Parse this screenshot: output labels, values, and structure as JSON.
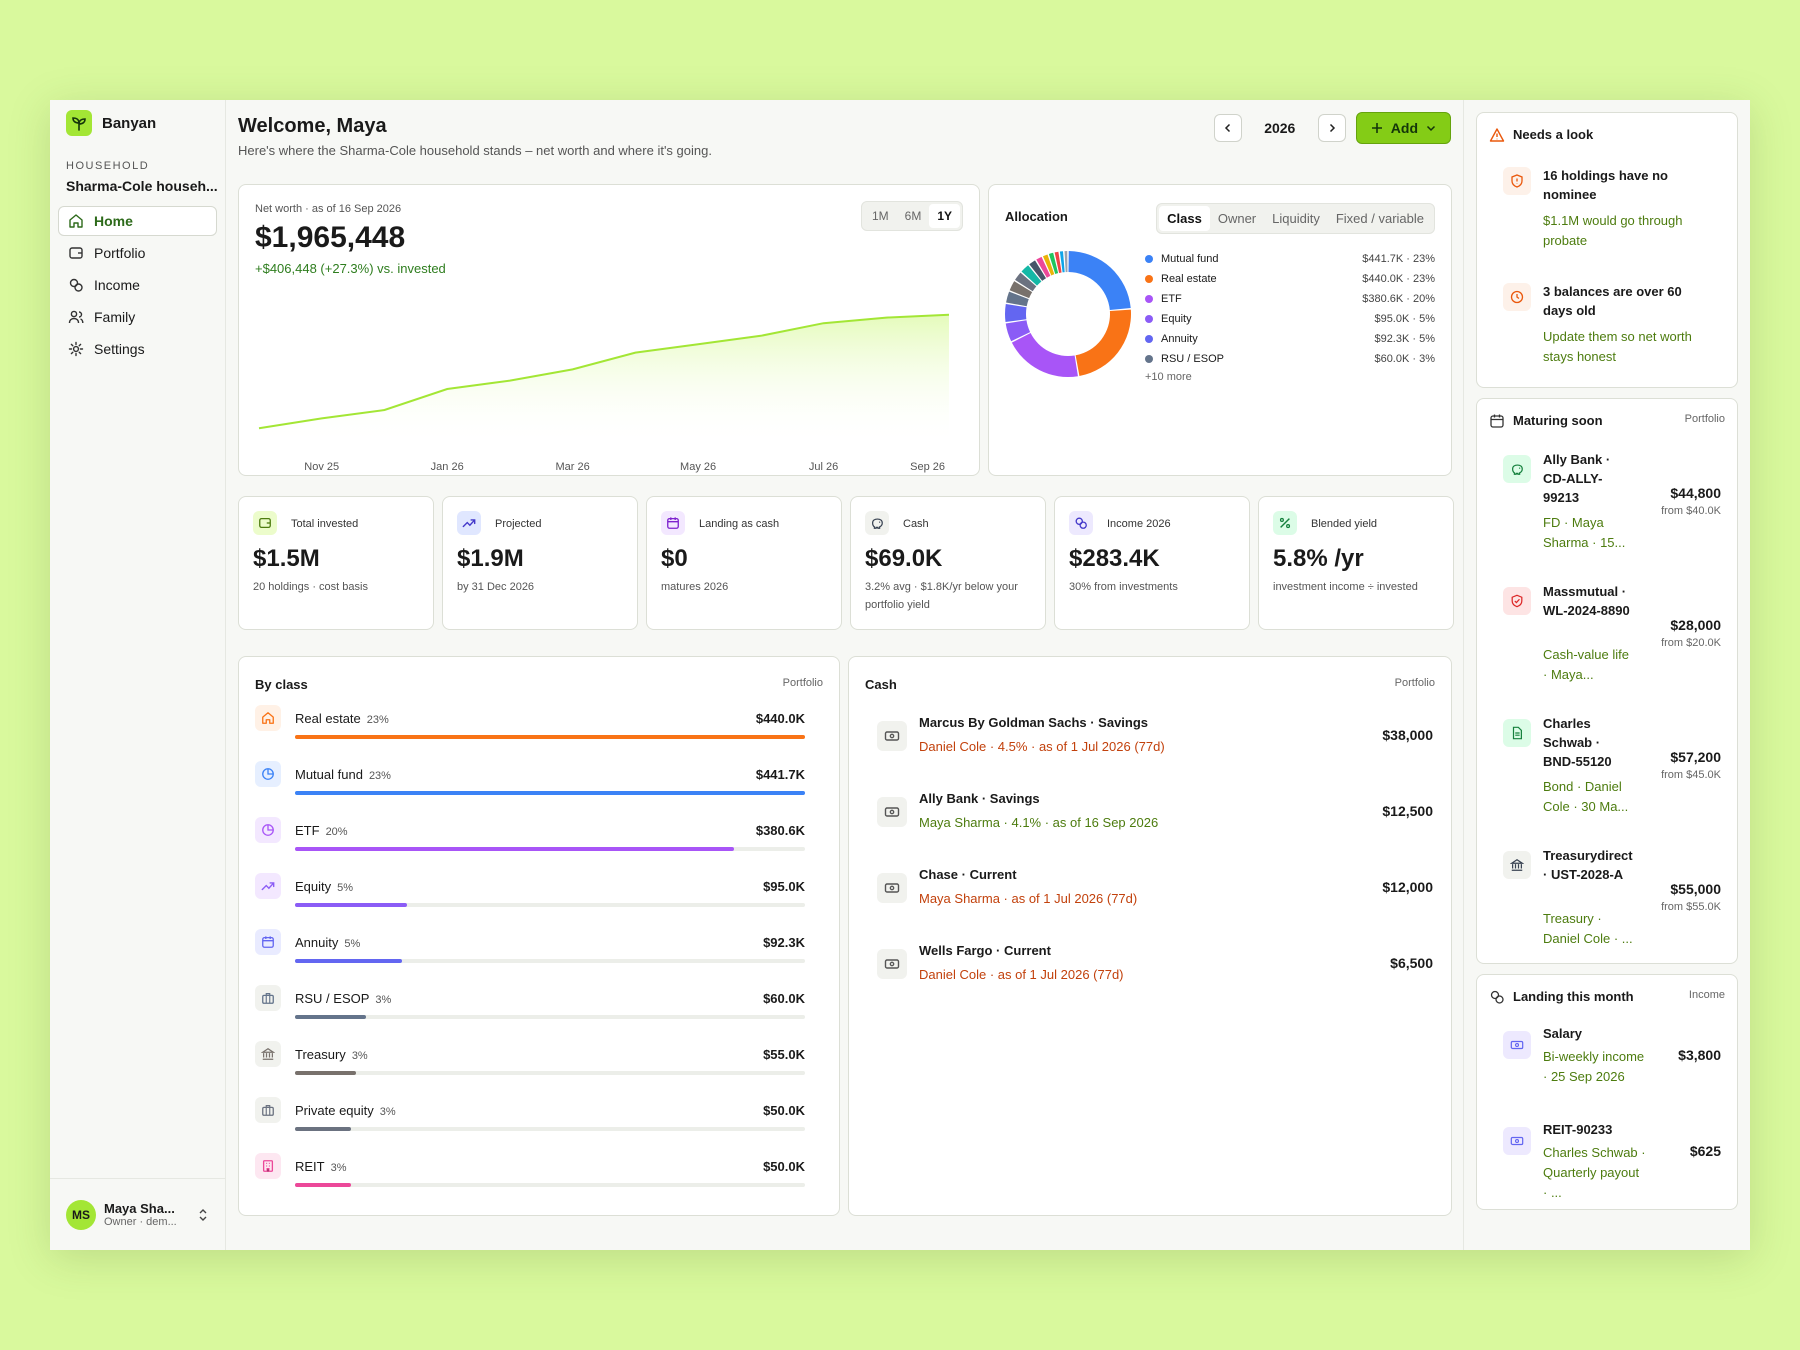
{
  "brand": {
    "name": "Banyan"
  },
  "household": {
    "label": "HOUSEHOLD",
    "name": "Sharma-Cole househ..."
  },
  "nav": [
    {
      "label": "Home",
      "icon": "home-icon"
    },
    {
      "label": "Portfolio",
      "icon": "wallet-icon"
    },
    {
      "label": "Income",
      "icon": "coins-icon"
    },
    {
      "label": "Family",
      "icon": "users-icon"
    },
    {
      "label": "Settings",
      "icon": "gear-icon"
    }
  ],
  "user": {
    "initials": "MS",
    "name": "Maya Sha...",
    "role": "Owner · dem..."
  },
  "header": {
    "title": "Welcome, Maya",
    "subtitle": "Here's where the Sharma-Cole household stands – net worth and where it's going.",
    "year": "2026",
    "add_label": "Add"
  },
  "networth": {
    "label": "Net worth · as of 16 Sep 2026",
    "value": "$1,965,448",
    "delta": "+$406,448 (+27.3%) vs. invested",
    "ranges": [
      "1M",
      "6M",
      "1Y"
    ],
    "active_range": "1Y",
    "chart_data": {
      "type": "area",
      "x": [
        "Oct 25",
        "Nov 25",
        "Dec 25",
        "Jan 26",
        "Feb 26",
        "Mar 26",
        "Apr 26",
        "May 26",
        "Jun 26",
        "Jul 26",
        "Aug 26",
        "Sep 26"
      ],
      "tick_labels": [
        "Nov 25",
        "Jan 26",
        "Mar 26",
        "May 26",
        "Jul 26",
        "Sep 26"
      ],
      "values": [
        1560000,
        1595000,
        1625000,
        1700000,
        1730000,
        1770000,
        1830000,
        1860000,
        1890000,
        1935000,
        1955000,
        1965448
      ],
      "ylim": [
        1500000,
        2000000
      ],
      "color": "#a3e635"
    }
  },
  "allocation": {
    "title": "Allocation",
    "tabs": [
      "Class",
      "Owner",
      "Liquidity",
      "Fixed / variable"
    ],
    "active_tab": "Class",
    "more": "+10 more",
    "chart_data": {
      "type": "pie",
      "items": [
        {
          "name": "Mutual fund",
          "value": 441.7,
          "label": "$441.7K · 23%",
          "color": "#3b82f6"
        },
        {
          "name": "Real estate",
          "value": 440.0,
          "label": "$440.0K · 23%",
          "color": "#f97316"
        },
        {
          "name": "ETF",
          "value": 380.6,
          "label": "$380.6K · 20%",
          "color": "#a855f7"
        },
        {
          "name": "Equity",
          "value": 95.0,
          "label": "$95.0K · 5%",
          "color": "#8b5cf6"
        },
        {
          "name": "Annuity",
          "value": 92.3,
          "label": "$92.3K · 5%",
          "color": "#6366f1"
        },
        {
          "name": "RSU / ESOP",
          "value": 60.0,
          "label": "$60.0K · 3%",
          "color": "#64748b"
        },
        {
          "value": 55.0,
          "color": "#78716c"
        },
        {
          "value": 50.0,
          "color": "#6b7280"
        },
        {
          "value": 50.0,
          "color": "#14b8a6"
        },
        {
          "value": 40.0,
          "color": "#475569"
        },
        {
          "value": 35.0,
          "color": "#ec4899"
        },
        {
          "value": 30.0,
          "color": "#eab308"
        },
        {
          "value": 28.0,
          "color": "#22c55e"
        },
        {
          "value": 25.0,
          "color": "#ef4444"
        },
        {
          "value": 22.0,
          "color": "#0ea5e9"
        },
        {
          "value": 20.0,
          "color": "#9ca3af"
        }
      ]
    }
  },
  "stats": [
    {
      "label": "Total invested",
      "value": "$1.5M",
      "sub": "20 holdings · cost basis",
      "icon": "wallet-icon",
      "bg": "#ecfccb",
      "fg": "#4d7c0f"
    },
    {
      "label": "Projected",
      "value": "$1.9M",
      "sub": "by 31 Dec 2026",
      "icon": "trend-up-icon",
      "bg": "#e0e7ff",
      "fg": "#4338ca"
    },
    {
      "label": "Landing as cash",
      "value": "$0",
      "sub": "matures 2026",
      "icon": "calendar-clock-icon",
      "bg": "#f3e8ff",
      "fg": "#7e22ce"
    },
    {
      "label": "Cash",
      "value": "$69.0K",
      "sub": "3.2% avg · $1.8K/yr below your portfolio yield",
      "icon": "piggy-bank-icon",
      "bg": "#f1f2ee",
      "fg": "#374151"
    },
    {
      "label": "Income 2026",
      "value": "$283.4K",
      "sub": "30% from investments",
      "icon": "coins-icon",
      "bg": "#ede9fe",
      "fg": "#4338ca"
    },
    {
      "label": "Blended yield",
      "value": "5.8% /yr",
      "sub": "investment income ÷ invested",
      "icon": "percent-icon",
      "bg": "#dcfce7",
      "fg": "#15803d"
    }
  ],
  "by_class": {
    "title": "By class",
    "link": "Portfolio",
    "rows": [
      {
        "name": "Real estate",
        "pct": "23%",
        "value": "$440.0K",
        "fill": 1.0,
        "color": "#f97316",
        "bg": "#fff1e6",
        "icon": "home-icon"
      },
      {
        "name": "Mutual fund",
        "pct": "23%",
        "value": "$441.7K",
        "fill": 1.0,
        "color": "#3b82f6",
        "bg": "#e6efff",
        "icon": "pie-icon"
      },
      {
        "name": "ETF",
        "pct": "20%",
        "value": "$380.6K",
        "fill": 0.86,
        "color": "#a855f7",
        "bg": "#f3e8ff",
        "icon": "pie-icon"
      },
      {
        "name": "Equity",
        "pct": "5%",
        "value": "$95.0K",
        "fill": 0.22,
        "color": "#8b5cf6",
        "bg": "#f3e8ff",
        "icon": "trend-up-icon"
      },
      {
        "name": "Annuity",
        "pct": "5%",
        "value": "$92.3K",
        "fill": 0.21,
        "color": "#6366f1",
        "bg": "#e9ebff",
        "icon": "calendar-clock-icon"
      },
      {
        "name": "RSU / ESOP",
        "pct": "3%",
        "value": "$60.0K",
        "fill": 0.14,
        "color": "#64748b",
        "bg": "#f1f2ee",
        "icon": "briefcase-icon"
      },
      {
        "name": "Treasury",
        "pct": "3%",
        "value": "$55.0K",
        "fill": 0.12,
        "color": "#78716c",
        "bg": "#f1f2ee",
        "icon": "bank-icon"
      },
      {
        "name": "Private equity",
        "pct": "3%",
        "value": "$50.0K",
        "fill": 0.11,
        "color": "#6b7280",
        "bg": "#f1f2ee",
        "icon": "briefcase-icon"
      },
      {
        "name": "REIT",
        "pct": "3%",
        "value": "$50.0K",
        "fill": 0.11,
        "color": "#ec4899",
        "bg": "#fde7f1",
        "icon": "building-icon"
      }
    ]
  },
  "cash": {
    "title": "Cash",
    "link": "Portfolio",
    "rows": [
      {
        "name": "Marcus By Goldman Sachs · Savings",
        "meta": "Daniel Cole · 4.5% · as of 1 Jul 2026 (77d)",
        "stale": true,
        "value": "$38,000"
      },
      {
        "name": "Ally Bank · Savings",
        "meta": "Maya Sharma · 4.1% · as of 16 Sep 2026",
        "stale": false,
        "value": "$12,500"
      },
      {
        "name": "Chase · Current",
        "meta": "Maya Sharma · as of 1 Jul 2026 (77d)",
        "stale": true,
        "value": "$12,000"
      },
      {
        "name": "Wells Fargo · Current",
        "meta": "Daniel Cole · as of 1 Jul 2026 (77d)",
        "stale": true,
        "value": "$6,500"
      }
    ]
  },
  "needs_look": {
    "title": "Needs a look",
    "items": [
      {
        "title": "16 holdings have no nominee",
        "desc": "$1.1M would go through probate",
        "icon": "shield-icon"
      },
      {
        "title": "3 balances are over 60 days old",
        "desc": "Update them so net worth stays honest",
        "icon": "clock-icon"
      }
    ]
  },
  "maturing": {
    "title": "Maturing soon",
    "link": "Portfolio",
    "items": [
      {
        "name": "Ally Bank · CD-ALLY-99213",
        "meta": "FD · Maya Sharma · 15...",
        "value": "$44,800",
        "from": "from $40.0K",
        "icon": "piggy-bank-icon",
        "bg": "#dcfce7",
        "fg": "#15803d"
      },
      {
        "name": "Massmutual · WL-2024-8890",
        "meta": "Cash-value life · Maya...",
        "value": "$28,000",
        "from": "from $20.0K",
        "icon": "shield-icon",
        "bg": "#fde4e4",
        "fg": "#dc2626"
      },
      {
        "name": "Charles Schwab · BND-55120",
        "meta": "Bond · Daniel Cole · 30 Ma...",
        "value": "$57,200",
        "from": "from $45.0K",
        "icon": "document-icon",
        "bg": "#dcfce7",
        "fg": "#15803d"
      },
      {
        "name": "Treasurydirect · UST-2028-A",
        "meta": "Treasury · Daniel Cole · ...",
        "value": "$55,000",
        "from": "from $55.0K",
        "icon": "bank-icon",
        "bg": "#f1f2ee",
        "fg": "#374151"
      }
    ]
  },
  "landing": {
    "title": "Landing this month",
    "link": "Income",
    "items": [
      {
        "name": "Salary",
        "meta": "Bi-weekly income · 25 Sep 2026",
        "value": "$3,800",
        "icon": "banknote-icon"
      },
      {
        "name": "REIT-90233",
        "meta": "Charles Schwab · Quarterly payout · ...",
        "value": "$625",
        "icon": "banknote-icon"
      }
    ]
  }
}
